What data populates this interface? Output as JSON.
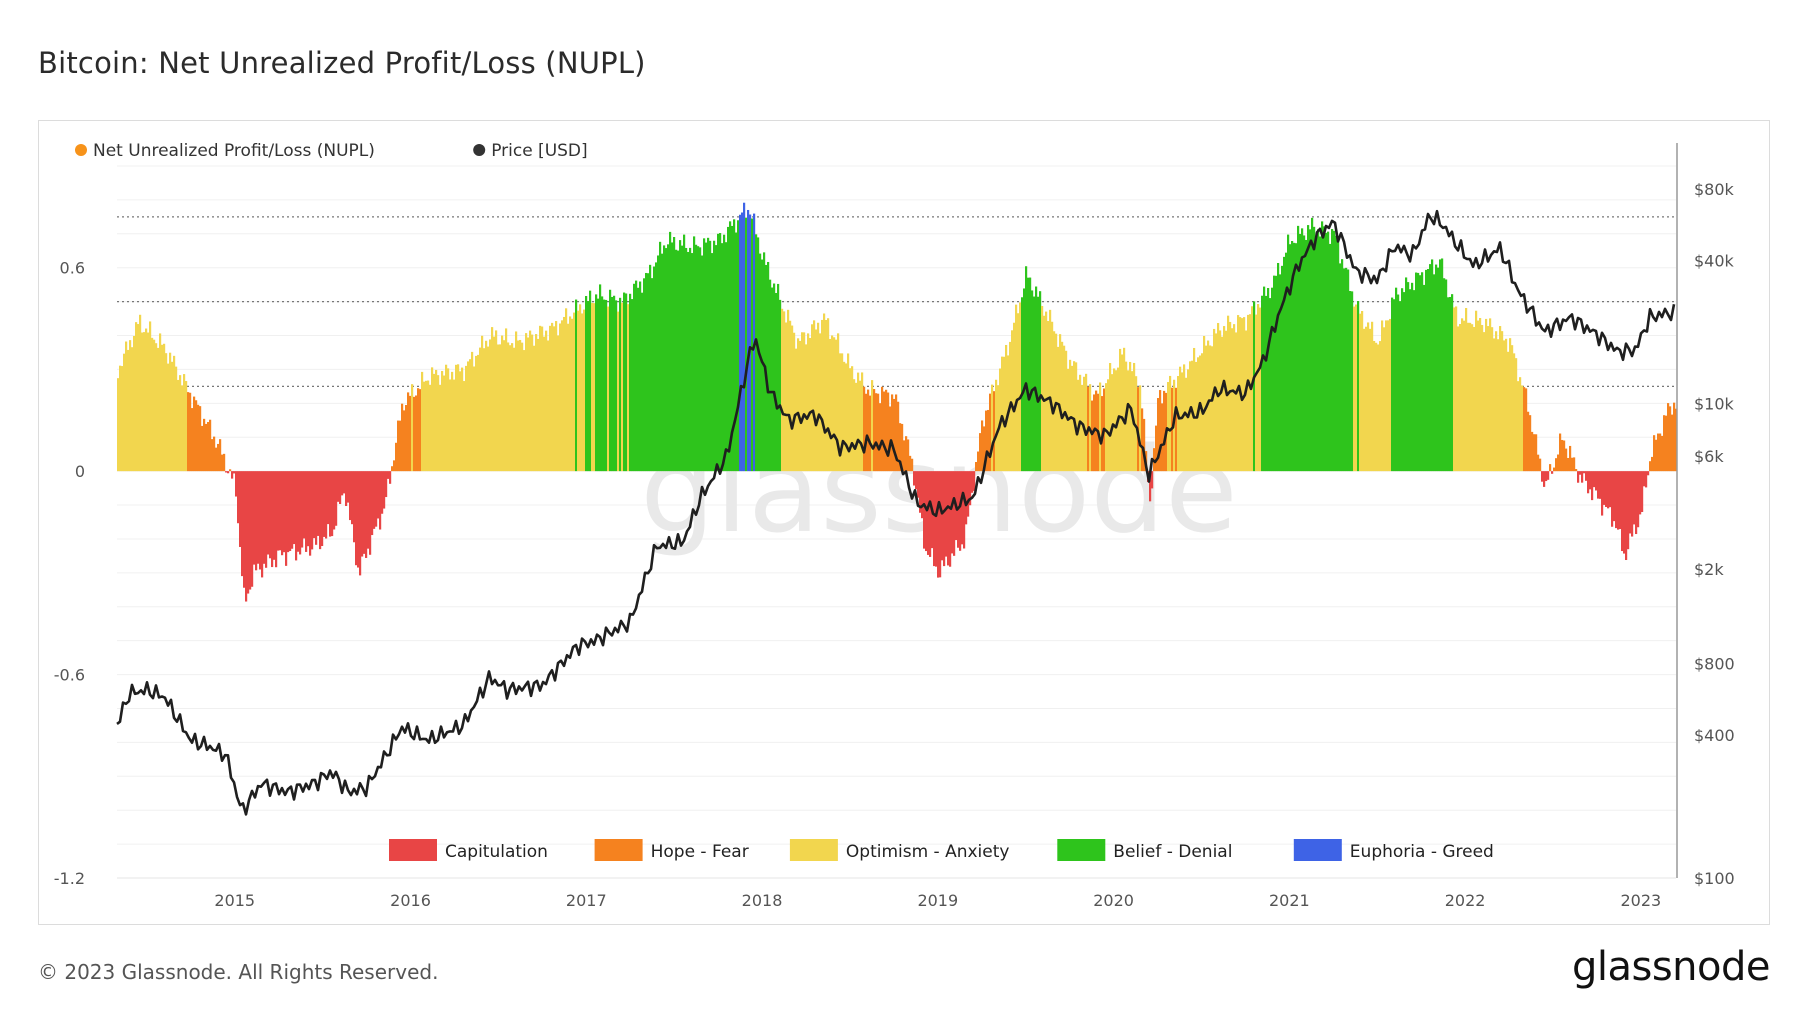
{
  "title": "Bitcoin: Net Unrealized Profit/Loss (NUPL)",
  "copyright": "© 2023 Glassnode. All Rights Reserved.",
  "brand": "glassnode",
  "watermark": "glassnode",
  "colors": {
    "capitulation": "#e84545",
    "hope_fear": "#f5821f",
    "optimism_anxiety": "#f2d64e",
    "belief_denial": "#2ec41c",
    "euphoria_greed": "#3e63e6",
    "price": "#1f1f1f",
    "nupl_legend": "#f7931a"
  },
  "chart_data": {
    "type": "area",
    "x_start": "2014-05",
    "x_end": "2023-03",
    "legend_top": [
      {
        "name": "Net Unrealized Profit/Loss (NUPL)",
        "color": "#f7931a"
      },
      {
        "name": "Price [USD]",
        "color": "#333333"
      }
    ],
    "zones_legend": [
      {
        "name": "Capitulation",
        "key": "capitulation"
      },
      {
        "name": "Hope - Fear",
        "key": "hope_fear"
      },
      {
        "name": "Optimism - Anxiety",
        "key": "optimism_anxiety"
      },
      {
        "name": "Belief - Denial",
        "key": "belief_denial"
      },
      {
        "name": "Euphoria - Greed",
        "key": "euphoria_greed"
      }
    ],
    "left_axis": {
      "min": -1.2,
      "max": 0.9,
      "ticks": [
        {
          "v": 0.6,
          "label": "0.6"
        },
        {
          "v": 0,
          "label": "0"
        },
        {
          "v": -0.6,
          "label": "-0.6"
        },
        {
          "v": -1.2,
          "label": "-1.2"
        }
      ]
    },
    "right_axis": {
      "scale": "log",
      "min": 100,
      "max": 100000,
      "ticks": [
        {
          "v": 80000,
          "label": "$80k"
        },
        {
          "v": 40000,
          "label": "$40k"
        },
        {
          "v": 10000,
          "label": "$10k"
        },
        {
          "v": 6000,
          "label": "$6k"
        },
        {
          "v": 2000,
          "label": "$2k"
        },
        {
          "v": 800,
          "label": "$800"
        },
        {
          "v": 400,
          "label": "$400"
        },
        {
          "v": 100,
          "label": "$100"
        }
      ]
    },
    "x_ticks": [
      "2015",
      "2016",
      "2017",
      "2018",
      "2019",
      "2020",
      "2021",
      "2022",
      "2023"
    ],
    "zone_thresholds": [
      0.75,
      0.5,
      0.25,
      0
    ],
    "nupl": [
      [
        2014.33,
        0.3
      ],
      [
        2014.45,
        0.44
      ],
      [
        2014.6,
        0.36
      ],
      [
        2014.75,
        0.22
      ],
      [
        2014.9,
        0.08
      ],
      [
        2015.0,
        -0.05
      ],
      [
        2015.05,
        -0.4
      ],
      [
        2015.1,
        -0.3
      ],
      [
        2015.25,
        -0.25
      ],
      [
        2015.45,
        -0.22
      ],
      [
        2015.55,
        -0.18
      ],
      [
        2015.62,
        -0.05
      ],
      [
        2015.7,
        -0.3
      ],
      [
        2015.85,
        -0.1
      ],
      [
        2015.95,
        0.2
      ],
      [
        2016.1,
        0.28
      ],
      [
        2016.3,
        0.3
      ],
      [
        2016.45,
        0.4
      ],
      [
        2016.6,
        0.38
      ],
      [
        2016.8,
        0.42
      ],
      [
        2016.95,
        0.48
      ],
      [
        2017.05,
        0.52
      ],
      [
        2017.2,
        0.5
      ],
      [
        2017.35,
        0.58
      ],
      [
        2017.45,
        0.68
      ],
      [
        2017.6,
        0.66
      ],
      [
        2017.75,
        0.68
      ],
      [
        2017.92,
        0.78
      ],
      [
        2018.0,
        0.63
      ],
      [
        2018.1,
        0.5
      ],
      [
        2018.2,
        0.38
      ],
      [
        2018.35,
        0.45
      ],
      [
        2018.5,
        0.3
      ],
      [
        2018.6,
        0.24
      ],
      [
        2018.75,
        0.22
      ],
      [
        2018.85,
        0.02
      ],
      [
        2018.92,
        -0.22
      ],
      [
        2019.0,
        -0.3
      ],
      [
        2019.15,
        -0.2
      ],
      [
        2019.25,
        0.15
      ],
      [
        2019.4,
        0.38
      ],
      [
        2019.5,
        0.58
      ],
      [
        2019.6,
        0.48
      ],
      [
        2019.75,
        0.32
      ],
      [
        2019.9,
        0.22
      ],
      [
        2020.05,
        0.35
      ],
      [
        2020.15,
        0.25
      ],
      [
        2020.2,
        -0.1
      ],
      [
        2020.25,
        0.22
      ],
      [
        2020.4,
        0.3
      ],
      [
        2020.6,
        0.42
      ],
      [
        2020.75,
        0.45
      ],
      [
        2020.9,
        0.55
      ],
      [
        2021.0,
        0.68
      ],
      [
        2021.12,
        0.72
      ],
      [
        2021.25,
        0.7
      ],
      [
        2021.38,
        0.48
      ],
      [
        2021.5,
        0.38
      ],
      [
        2021.6,
        0.52
      ],
      [
        2021.75,
        0.58
      ],
      [
        2021.85,
        0.62
      ],
      [
        2021.95,
        0.45
      ],
      [
        2022.1,
        0.44
      ],
      [
        2022.25,
        0.38
      ],
      [
        2022.35,
        0.2
      ],
      [
        2022.45,
        -0.05
      ],
      [
        2022.55,
        0.1
      ],
      [
        2022.65,
        -0.02
      ],
      [
        2022.75,
        -0.08
      ],
      [
        2022.85,
        -0.15
      ],
      [
        2022.9,
        -0.25
      ],
      [
        2023.0,
        -0.12
      ],
      [
        2023.05,
        0.05
      ],
      [
        2023.15,
        0.18
      ],
      [
        2023.18,
        0.2
      ]
    ],
    "price": [
      [
        2014.33,
        440
      ],
      [
        2014.4,
        600
      ],
      [
        2014.5,
        620
      ],
      [
        2014.6,
        580
      ],
      [
        2014.75,
        380
      ],
      [
        2014.85,
        360
      ],
      [
        2014.95,
        330
      ],
      [
        2015.04,
        190
      ],
      [
        2015.15,
        250
      ],
      [
        2015.3,
        230
      ],
      [
        2015.45,
        250
      ],
      [
        2015.55,
        280
      ],
      [
        2015.65,
        230
      ],
      [
        2015.75,
        240
      ],
      [
        2015.85,
        320
      ],
      [
        2015.95,
        430
      ],
      [
        2016.1,
        380
      ],
      [
        2016.3,
        440
      ],
      [
        2016.45,
        700
      ],
      [
        2016.55,
        620
      ],
      [
        2016.75,
        650
      ],
      [
        2016.95,
        950
      ],
      [
        2017.05,
        1000
      ],
      [
        2017.25,
        1200
      ],
      [
        2017.4,
        2500
      ],
      [
        2017.55,
        2600
      ],
      [
        2017.65,
        4000
      ],
      [
        2017.8,
        6000
      ],
      [
        2017.92,
        15000
      ],
      [
        2017.96,
        19000
      ],
      [
        2018.05,
        11000
      ],
      [
        2018.15,
        8500
      ],
      [
        2018.3,
        9000
      ],
      [
        2018.45,
        6500
      ],
      [
        2018.6,
        6800
      ],
      [
        2018.75,
        6400
      ],
      [
        2018.88,
        3800
      ],
      [
        2019.0,
        3500
      ],
      [
        2019.2,
        4000
      ],
      [
        2019.35,
        8000
      ],
      [
        2019.5,
        11500
      ],
      [
        2019.65,
        10000
      ],
      [
        2019.8,
        8000
      ],
      [
        2019.95,
        7300
      ],
      [
        2020.1,
        9500
      ],
      [
        2020.2,
        5000
      ],
      [
        2020.35,
        8800
      ],
      [
        2020.5,
        9200
      ],
      [
        2020.6,
        11500
      ],
      [
        2020.75,
        11000
      ],
      [
        2020.85,
        15000
      ],
      [
        2020.95,
        25000
      ],
      [
        2021.05,
        38000
      ],
      [
        2021.15,
        50000
      ],
      [
        2021.25,
        58000
      ],
      [
        2021.38,
        36000
      ],
      [
        2021.5,
        33000
      ],
      [
        2021.6,
        46000
      ],
      [
        2021.7,
        42000
      ],
      [
        2021.8,
        62000
      ],
      [
        2021.87,
        57000
      ],
      [
        2021.95,
        47000
      ],
      [
        2022.05,
        38000
      ],
      [
        2022.2,
        45000
      ],
      [
        2022.3,
        30000
      ],
      [
        2022.45,
        20000
      ],
      [
        2022.6,
        23000
      ],
      [
        2022.75,
        19500
      ],
      [
        2022.87,
        16500
      ],
      [
        2022.97,
        16800
      ],
      [
        2023.05,
        23000
      ],
      [
        2023.15,
        24000
      ]
    ]
  }
}
